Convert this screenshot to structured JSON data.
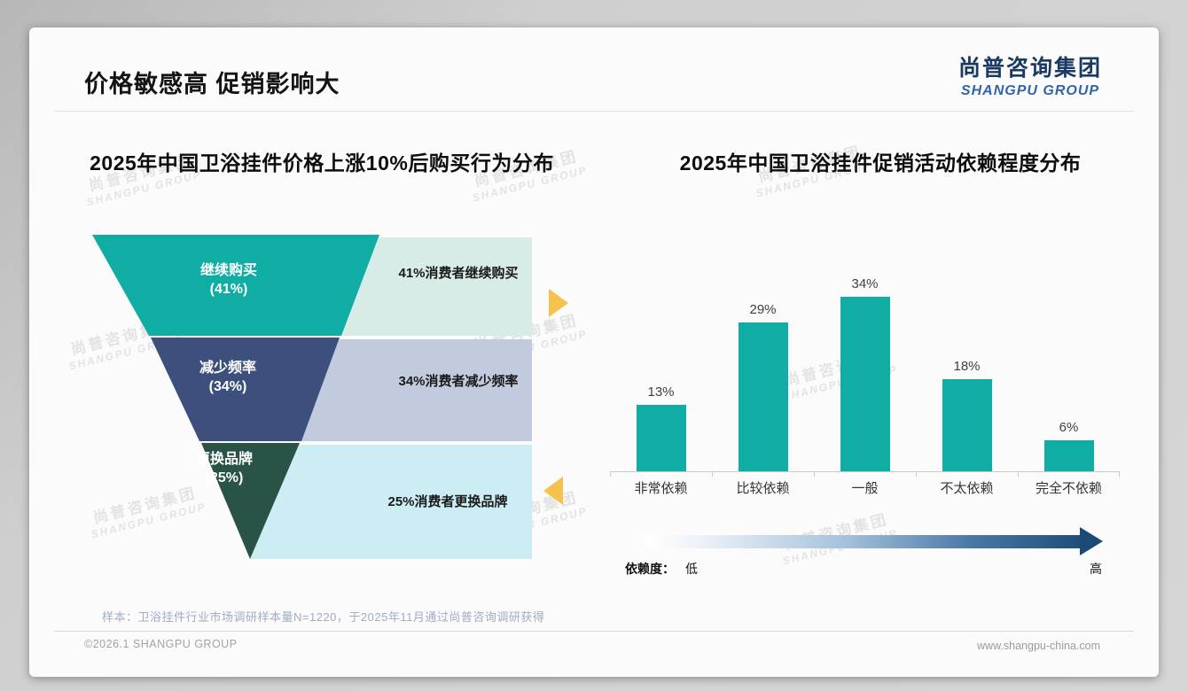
{
  "page": {
    "title": "价格敏感高 促销影响大",
    "logo": {
      "cn": "尚普咨询集团",
      "en": "SHANGPU GROUP"
    },
    "watermark": {
      "cn": "尚普咨询集团",
      "en": "SHANGPU GROUP"
    },
    "footnote": "样本：卫浴挂件行业市场调研样本量N=1220，于2025年11月通过尚普咨询调研获得",
    "footer": {
      "left": "©2026.1 SHANGPU GROUP",
      "right": "www.shangpu-china.com"
    }
  },
  "colors": {
    "funnel_teal": "#0fada3",
    "funnel_navy": "#3c4f7d",
    "funnel_green": "#2a5347",
    "band_mint": "#d8ece7",
    "band_lavender": "#c2cade",
    "band_cyan": "#cdedf4",
    "bar_teal": "#0fada3",
    "accent_yellow": "#f5c24e",
    "gradient_arrow_end": "#1f4e79",
    "logo_navy": "#1b3a63",
    "logo_blue": "#3265a5"
  },
  "chart_data": [
    {
      "type": "funnel",
      "title": "2025年中国卫浴挂件价格上涨10%后购买行为分布",
      "stages": [
        {
          "label": "继续购买",
          "value": 41,
          "value_label": "(41%)",
          "annotation": "41%消费者继续购买"
        },
        {
          "label": "减少频率",
          "value": 34,
          "value_label": "(34%)",
          "annotation": "34%消费者减少频率"
        },
        {
          "label": "更换品牌",
          "value": 25,
          "value_label": "(25%)",
          "annotation": "25%消费者更换品牌"
        }
      ]
    },
    {
      "type": "bar",
      "title": "2025年中国卫浴挂件促销活动依赖程度分布",
      "categories": [
        "非常依赖",
        "比较依赖",
        "一般",
        "不太依赖",
        "完全不依赖"
      ],
      "values": [
        13,
        29,
        34,
        18,
        6
      ],
      "value_labels": [
        "13%",
        "29%",
        "34%",
        "18%",
        "6%"
      ],
      "ylim": [
        0,
        40
      ],
      "grid": false,
      "legend": "none",
      "axis_note": {
        "label": "依赖度：",
        "low": "低",
        "high": "高"
      }
    }
  ]
}
